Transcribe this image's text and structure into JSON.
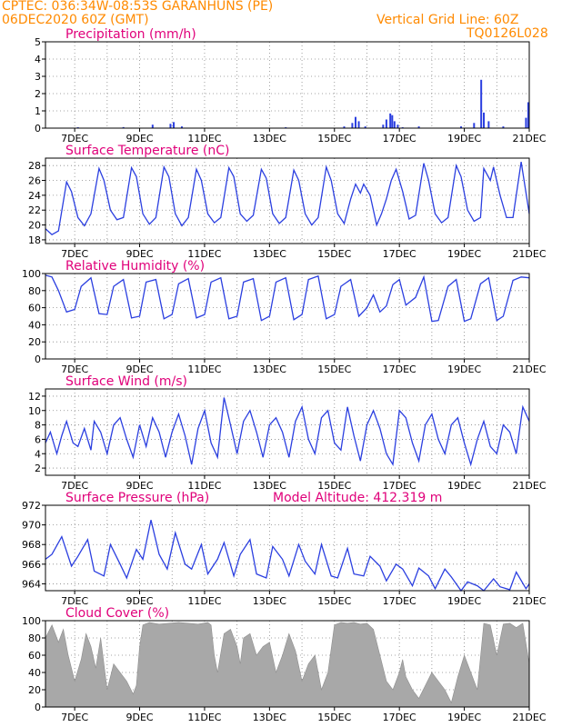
{
  "header": {
    "line1": "CPTEC:  036:34W-08:53S  GARANHUNS (PE)",
    "line2": "06DEC2020 60Z (GMT)",
    "grid_note": "Vertical Grid Line: 60Z",
    "run_id": "TQ0126L028",
    "colors": {
      "header": "#ff8a00",
      "title": "#e0007a",
      "series": "#2b3fe0",
      "fill": "#a8a8a8"
    }
  },
  "chart_data": [
    {
      "type": "bar",
      "title": "Precipitation (mm/h)",
      "x_tick_labels": [
        "7DEC",
        "9DEC",
        "11DEC",
        "13DEC",
        "15DEC",
        "17DEC",
        "19DEC",
        "21DEC"
      ],
      "x_range_days": [
        6.1,
        21.0
      ],
      "ylim": [
        0,
        5
      ],
      "y_ticks": [
        "0",
        "1",
        "2",
        "3",
        "4",
        "5"
      ],
      "bars": [
        {
          "day": 7.1,
          "v": 0.05
        },
        {
          "day": 8.5,
          "v": 0.06
        },
        {
          "day": 9.4,
          "v": 0.2
        },
        {
          "day": 9.95,
          "v": 0.25
        },
        {
          "day": 10.05,
          "v": 0.35
        },
        {
          "day": 10.3,
          "v": 0.1
        },
        {
          "day": 13.5,
          "v": 0.05
        },
        {
          "day": 15.3,
          "v": 0.1
        },
        {
          "day": 15.55,
          "v": 0.3
        },
        {
          "day": 15.65,
          "v": 0.65
        },
        {
          "day": 15.75,
          "v": 0.4
        },
        {
          "day": 15.95,
          "v": 0.1
        },
        {
          "day": 16.5,
          "v": 0.2
        },
        {
          "day": 16.6,
          "v": 0.5
        },
        {
          "day": 16.72,
          "v": 0.85
        },
        {
          "day": 16.78,
          "v": 0.75
        },
        {
          "day": 16.85,
          "v": 0.4
        },
        {
          "day": 16.95,
          "v": 0.2
        },
        {
          "day": 17.1,
          "v": 0.05
        },
        {
          "day": 17.6,
          "v": 0.1
        },
        {
          "day": 18.9,
          "v": 0.1
        },
        {
          "day": 19.3,
          "v": 0.3
        },
        {
          "day": 19.52,
          "v": 2.8
        },
        {
          "day": 19.6,
          "v": 0.9
        },
        {
          "day": 19.75,
          "v": 0.4
        },
        {
          "day": 20.2,
          "v": 0.1
        },
        {
          "day": 20.9,
          "v": 0.6
        },
        {
          "day": 20.97,
          "v": 1.5
        }
      ]
    },
    {
      "type": "line",
      "title": "Surface Temperature (nC)",
      "x_tick_labels": [
        "7DEC",
        "9DEC",
        "11DEC",
        "13DEC",
        "15DEC",
        "17DEC",
        "19DEC",
        "21DEC"
      ],
      "ylim": [
        17.5,
        29
      ],
      "y_ticks": [
        "18",
        "20",
        "22",
        "24",
        "26",
        "28"
      ],
      "x": [
        6.1,
        6.3,
        6.5,
        6.75,
        6.9,
        7.1,
        7.3,
        7.5,
        7.75,
        7.9,
        8.1,
        8.3,
        8.5,
        8.75,
        8.9,
        9.1,
        9.3,
        9.5,
        9.75,
        9.9,
        10.1,
        10.3,
        10.5,
        10.75,
        10.9,
        11.1,
        11.3,
        11.5,
        11.75,
        11.9,
        12.1,
        12.3,
        12.5,
        12.75,
        12.9,
        13.1,
        13.3,
        13.5,
        13.75,
        13.9,
        14.1,
        14.3,
        14.5,
        14.75,
        14.9,
        15.1,
        15.3,
        15.5,
        15.65,
        15.8,
        15.9,
        16.1,
        16.3,
        16.45,
        16.6,
        16.75,
        16.9,
        17.1,
        17.3,
        17.5,
        17.75,
        17.9,
        18.1,
        18.3,
        18.5,
        18.75,
        18.9,
        19.1,
        19.3,
        19.5,
        19.6,
        19.8,
        19.9,
        20.1,
        20.3,
        20.5,
        20.75,
        21.0
      ],
      "y": [
        19.5,
        18.7,
        19.2,
        25.8,
        24.5,
        21.0,
        19.9,
        21.5,
        27.6,
        26.0,
        22.0,
        20.7,
        21.0,
        27.7,
        26.5,
        21.5,
        20.1,
        21.0,
        27.8,
        26.5,
        21.5,
        19.9,
        21.0,
        27.5,
        26.0,
        21.5,
        20.3,
        21.0,
        27.7,
        26.5,
        21.5,
        20.5,
        21.3,
        27.5,
        26.3,
        21.5,
        20.2,
        21.0,
        27.4,
        26.0,
        21.5,
        20.0,
        21.0,
        27.8,
        26.0,
        21.5,
        20.2,
        23.5,
        25.5,
        24.3,
        25.5,
        24.0,
        20.0,
        21.5,
        23.5,
        26.0,
        27.5,
        24.5,
        20.8,
        21.3,
        28.3,
        26.0,
        21.5,
        20.3,
        21.0,
        28.0,
        26.5,
        22.0,
        20.5,
        21.0,
        27.6,
        26.0,
        27.8,
        24.0,
        21.0,
        21.0,
        28.5,
        21.5
      ]
    },
    {
      "type": "line",
      "title": "Relative Humidity (%)",
      "x_tick_labels": [
        "7DEC",
        "9DEC",
        "11DEC",
        "13DEC",
        "15DEC",
        "17DEC",
        "19DEC",
        "21DEC"
      ],
      "ylim": [
        0,
        100
      ],
      "y_ticks": [
        "0",
        "20",
        "40",
        "60",
        "80",
        "100"
      ],
      "x": [
        6.1,
        6.3,
        6.5,
        6.75,
        7.0,
        7.2,
        7.5,
        7.75,
        8.0,
        8.2,
        8.5,
        8.75,
        9.0,
        9.2,
        9.5,
        9.75,
        10.0,
        10.2,
        10.5,
        10.75,
        11.0,
        11.2,
        11.5,
        11.75,
        12.0,
        12.2,
        12.5,
        12.75,
        13.0,
        13.2,
        13.5,
        13.75,
        14.0,
        14.2,
        14.5,
        14.75,
        15.0,
        15.2,
        15.5,
        15.75,
        16.0,
        16.2,
        16.4,
        16.6,
        16.8,
        17.0,
        17.2,
        17.5,
        17.75,
        18.0,
        18.2,
        18.5,
        18.75,
        19.0,
        19.2,
        19.5,
        19.75,
        20.0,
        20.2,
        20.5,
        20.75,
        21.0
      ],
      "y": [
        98,
        96,
        80,
        55,
        58,
        85,
        95,
        53,
        52,
        85,
        93,
        48,
        50,
        90,
        93,
        47,
        52,
        88,
        94,
        48,
        52,
        90,
        95,
        47,
        50,
        90,
        94,
        45,
        50,
        90,
        95,
        46,
        52,
        93,
        97,
        47,
        52,
        85,
        93,
        50,
        60,
        75,
        55,
        62,
        87,
        93,
        63,
        72,
        96,
        44,
        45,
        85,
        93,
        44,
        47,
        88,
        95,
        45,
        50,
        92,
        96,
        95
      ]
    },
    {
      "type": "line",
      "title": "Surface Wind (m/s)",
      "x_tick_labels": [
        "7DEC",
        "9DEC",
        "11DEC",
        "13DEC",
        "15DEC",
        "17DEC",
        "19DEC",
        "21DEC"
      ],
      "ylim": [
        1,
        13
      ],
      "y_ticks": [
        "2",
        "4",
        "6",
        "8",
        "10",
        "12"
      ],
      "x": [
        6.1,
        6.25,
        6.45,
        6.6,
        6.75,
        6.95,
        7.1,
        7.3,
        7.5,
        7.6,
        7.8,
        8.0,
        8.2,
        8.4,
        8.6,
        8.8,
        9.0,
        9.2,
        9.4,
        9.6,
        9.8,
        10.0,
        10.2,
        10.4,
        10.6,
        10.8,
        11.0,
        11.2,
        11.4,
        11.6,
        11.8,
        12.0,
        12.2,
        12.4,
        12.6,
        12.8,
        13.0,
        13.2,
        13.4,
        13.6,
        13.8,
        14.0,
        14.2,
        14.4,
        14.6,
        14.8,
        15.0,
        15.2,
        15.4,
        15.6,
        15.8,
        16.0,
        16.2,
        16.4,
        16.6,
        16.8,
        17.0,
        17.2,
        17.4,
        17.6,
        17.8,
        18.0,
        18.2,
        18.4,
        18.6,
        18.8,
        19.0,
        19.2,
        19.4,
        19.6,
        19.8,
        20.0,
        20.2,
        20.4,
        20.6,
        20.8,
        21.0
      ],
      "y": [
        5.5,
        7.0,
        4.0,
        6.5,
        8.5,
        5.5,
        5.0,
        7.5,
        4.5,
        8.5,
        7.0,
        4.0,
        8.0,
        9.0,
        6.0,
        3.5,
        8.0,
        5.0,
        9.0,
        7.0,
        3.5,
        7.0,
        9.5,
        6.5,
        2.5,
        7.5,
        10.0,
        5.5,
        3.5,
        11.8,
        8.0,
        4.0,
        8.5,
        10.0,
        7.0,
        3.5,
        8.0,
        9.0,
        7.0,
        3.5,
        8.5,
        10.5,
        6.0,
        4.0,
        9.0,
        10.0,
        5.5,
        4.5,
        10.5,
        6.5,
        3.0,
        8.0,
        10.0,
        7.5,
        4.0,
        2.5,
        10.0,
        9.0,
        5.5,
        3.0,
        8.0,
        9.5,
        6.0,
        4.0,
        8.0,
        9.0,
        5.5,
        2.5,
        6.0,
        8.5,
        5.0,
        4.0,
        8.0,
        7.0,
        4.0,
        10.5,
        8.5
      ]
    },
    {
      "type": "line",
      "title": "Surface Pressure (hPa)",
      "annotation": "Model Altitude: 412.319 m",
      "x_tick_labels": [
        "7DEC",
        "9DEC",
        "11DEC",
        "13DEC",
        "15DEC",
        "17DEC",
        "19DEC",
        "21DEC"
      ],
      "ylim": [
        963.3,
        972
      ],
      "y_ticks": [
        "964",
        "966",
        "968",
        "970",
        "972"
      ],
      "x": [
        6.1,
        6.3,
        6.6,
        6.9,
        7.1,
        7.4,
        7.6,
        7.9,
        8.1,
        8.4,
        8.6,
        8.9,
        9.1,
        9.35,
        9.6,
        9.85,
        10.1,
        10.4,
        10.6,
        10.9,
        11.1,
        11.4,
        11.6,
        11.9,
        12.1,
        12.4,
        12.6,
        12.9,
        13.1,
        13.4,
        13.6,
        13.9,
        14.1,
        14.4,
        14.6,
        14.9,
        15.1,
        15.4,
        15.6,
        15.9,
        16.1,
        16.4,
        16.6,
        16.9,
        17.1,
        17.4,
        17.6,
        17.9,
        18.1,
        18.4,
        18.6,
        18.9,
        19.1,
        19.4,
        19.6,
        19.9,
        20.1,
        20.4,
        20.6,
        20.9,
        21.0
      ],
      "y": [
        966.5,
        967.0,
        968.8,
        965.8,
        966.8,
        968.5,
        965.3,
        964.8,
        968.0,
        966.0,
        964.6,
        967.5,
        966.5,
        970.5,
        967.0,
        965.5,
        969.2,
        966.0,
        965.5,
        968.0,
        965.0,
        966.5,
        968.2,
        964.8,
        967.0,
        968.5,
        965.0,
        964.6,
        967.8,
        966.5,
        964.8,
        968.0,
        966.3,
        965.0,
        968.0,
        964.8,
        964.6,
        967.6,
        965.0,
        964.8,
        966.8,
        965.8,
        964.3,
        966.0,
        965.5,
        963.8,
        965.6,
        964.8,
        963.5,
        965.5,
        964.7,
        963.3,
        964.2,
        963.8,
        963.3,
        964.5,
        963.7,
        963.4,
        965.2,
        963.5,
        964.0
      ]
    },
    {
      "type": "area",
      "title": "Cloud Cover (%)",
      "x_tick_labels": [
        "7DEC",
        "9DEC",
        "11DEC",
        "13DEC",
        "15DEC",
        "17DEC",
        "19DEC",
        "21DEC"
      ],
      "ylim": [
        0,
        100
      ],
      "y_ticks": [
        "0",
        "20",
        "40",
        "60",
        "80",
        "100"
      ],
      "x": [
        6.1,
        6.3,
        6.5,
        6.65,
        6.8,
        7.0,
        7.2,
        7.35,
        7.5,
        7.65,
        7.8,
        8.0,
        8.2,
        8.4,
        8.6,
        8.8,
        8.9,
        9.0,
        9.1,
        9.3,
        9.6,
        9.9,
        10.2,
        10.5,
        10.8,
        11.1,
        11.2,
        11.3,
        11.4,
        11.6,
        11.8,
        12.0,
        12.1,
        12.2,
        12.4,
        12.6,
        12.8,
        13.0,
        13.2,
        13.4,
        13.6,
        13.8,
        14.0,
        14.2,
        14.4,
        14.6,
        14.8,
        15.0,
        15.2,
        15.4,
        15.6,
        15.8,
        16.0,
        16.2,
        16.4,
        16.6,
        16.8,
        17.0,
        17.1,
        17.2,
        17.4,
        17.6,
        17.8,
        18.0,
        18.2,
        18.4,
        18.6,
        18.8,
        19.0,
        19.2,
        19.4,
        19.6,
        19.8,
        20.0,
        20.2,
        20.4,
        20.6,
        20.8,
        21.0
      ],
      "y": [
        80,
        95,
        75,
        90,
        60,
        30,
        55,
        85,
        70,
        45,
        80,
        20,
        50,
        40,
        30,
        15,
        25,
        70,
        95,
        98,
        96,
        97,
        98,
        97,
        96,
        98,
        95,
        60,
        40,
        85,
        90,
        70,
        50,
        80,
        85,
        60,
        70,
        75,
        40,
        60,
        85,
        65,
        30,
        50,
        60,
        20,
        40,
        95,
        98,
        97,
        98,
        96,
        97,
        90,
        60,
        30,
        20,
        40,
        55,
        35,
        20,
        10,
        25,
        40,
        30,
        20,
        5,
        35,
        60,
        40,
        20,
        97,
        95,
        60,
        96,
        97,
        92,
        97,
        50
      ]
    }
  ]
}
